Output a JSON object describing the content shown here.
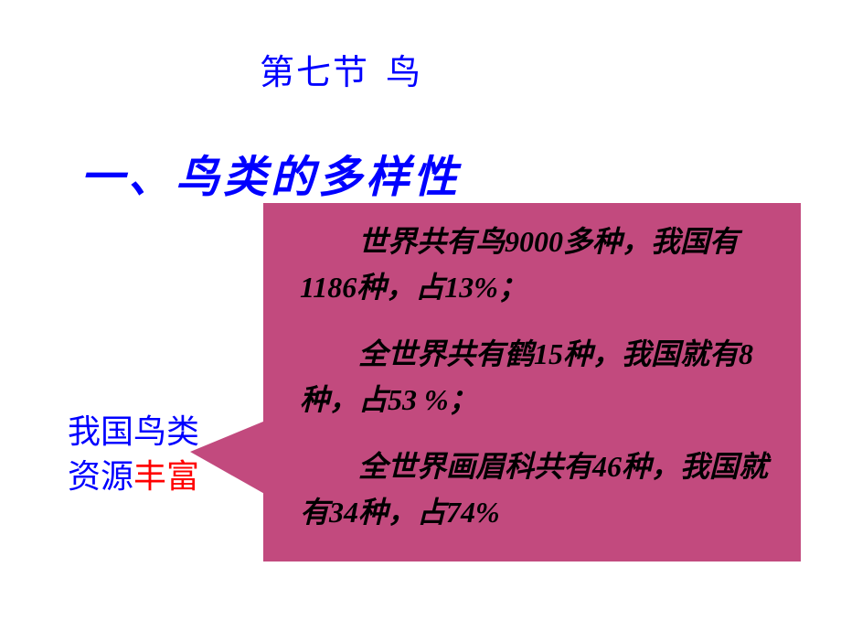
{
  "colors": {
    "background": "#ffffff",
    "title_blue": "#0000ff",
    "label_red": "#ff0000",
    "box_fill": "#c24a7e",
    "box_text": "#000000"
  },
  "chapter": {
    "part1": "第七节",
    "part2": "鸟"
  },
  "section_heading": "一、鸟类的多样性",
  "label": {
    "line1_blue": "我国鸟类",
    "line2_blue": "资源",
    "line2_red": "丰富"
  },
  "facts": {
    "p1": "世界共有鸟9000多种，我国有1186种，占13%；",
    "p2": "全世界共有鹤15种，我国就有8种，占53 %；",
    "p3": "全世界画眉科共有46种，我国就有34种，占74%"
  }
}
